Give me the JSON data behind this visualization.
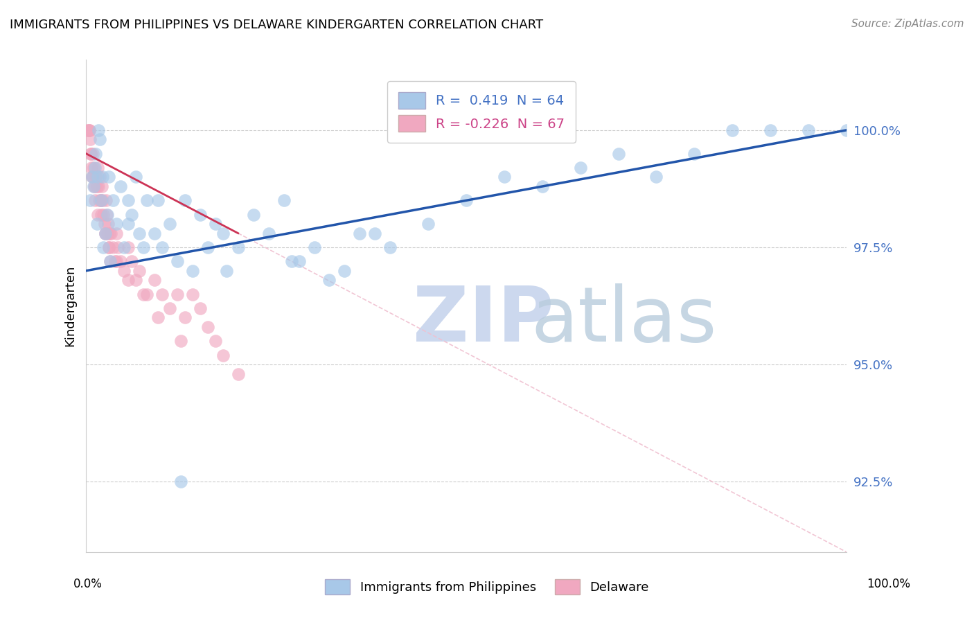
{
  "title": "IMMIGRANTS FROM PHILIPPINES VS DELAWARE KINDERGARTEN CORRELATION CHART",
  "source": "Source: ZipAtlas.com",
  "ylabel": "Kindergarten",
  "yticks": [
    92.5,
    95.0,
    97.5,
    100.0
  ],
  "ytick_labels": [
    "92.5%",
    "95.0%",
    "97.5%",
    "100.0%"
  ],
  "xlim": [
    0.0,
    100.0
  ],
  "ylim": [
    91.0,
    101.5
  ],
  "blue_color": "#a8c8e8",
  "pink_color": "#f0a8c0",
  "blue_line_color": "#2255aa",
  "pink_line_color": "#cc3355",
  "pink_dash_color": "#f0c0d0",
  "watermark_zip_color": "#ccd8ee",
  "watermark_atlas_color": "#b8ccdd",
  "legend_label_blue": "R =  0.419  N = 64",
  "legend_label_pink": "R = -0.226  N = 67",
  "legend_text_blue": "#4472c4",
  "legend_text_pink": "#cc4488",
  "blue_scatter_x": [
    0.5,
    0.8,
    1.0,
    1.2,
    1.3,
    1.5,
    1.6,
    1.8,
    2.0,
    2.2,
    2.5,
    2.8,
    3.0,
    3.5,
    4.0,
    4.5,
    5.0,
    5.5,
    6.0,
    6.5,
    7.0,
    8.0,
    9.0,
    10.0,
    11.0,
    12.0,
    13.0,
    14.0,
    15.0,
    16.0,
    17.0,
    18.0,
    20.0,
    22.0,
    24.0,
    26.0,
    28.0,
    30.0,
    32.0,
    34.0,
    36.0,
    40.0,
    45.0,
    50.0,
    55.0,
    60.0,
    65.0,
    70.0,
    75.0,
    80.0,
    85.0,
    90.0,
    95.0,
    100.0,
    1.4,
    2.3,
    3.2,
    5.5,
    7.5,
    9.5,
    12.5,
    18.5,
    27.0,
    38.0
  ],
  "blue_scatter_y": [
    98.5,
    99.0,
    98.8,
    99.2,
    99.5,
    99.0,
    100.0,
    99.8,
    98.5,
    99.0,
    97.8,
    98.2,
    99.0,
    98.5,
    98.0,
    98.8,
    97.5,
    98.5,
    98.2,
    99.0,
    97.8,
    98.5,
    97.8,
    97.5,
    98.0,
    97.2,
    98.5,
    97.0,
    98.2,
    97.5,
    98.0,
    97.8,
    97.5,
    98.2,
    97.8,
    98.5,
    97.2,
    97.5,
    96.8,
    97.0,
    97.8,
    97.5,
    98.0,
    98.5,
    99.0,
    98.8,
    99.2,
    99.5,
    99.0,
    99.5,
    100.0,
    100.0,
    100.0,
    100.0,
    98.0,
    97.5,
    97.2,
    98.0,
    97.5,
    98.5,
    92.5,
    97.0,
    97.2,
    97.8
  ],
  "pink_scatter_x": [
    0.2,
    0.3,
    0.4,
    0.5,
    0.6,
    0.7,
    0.8,
    0.9,
    1.0,
    1.1,
    1.2,
    1.3,
    1.4,
    1.5,
    1.6,
    1.7,
    1.8,
    1.9,
    2.0,
    2.1,
    2.2,
    2.3,
    2.4,
    2.5,
    2.6,
    2.7,
    2.8,
    2.9,
    3.0,
    3.1,
    3.2,
    3.3,
    3.5,
    3.8,
    4.0,
    4.2,
    4.5,
    5.0,
    5.5,
    6.0,
    6.5,
    7.0,
    8.0,
    9.0,
    10.0,
    11.0,
    12.0,
    13.0,
    14.0,
    15.0,
    16.0,
    17.0,
    18.0,
    20.0,
    0.4,
    0.6,
    0.9,
    1.2,
    1.5,
    2.0,
    2.5,
    3.0,
    4.0,
    5.5,
    7.5,
    9.5,
    12.5
  ],
  "pink_scatter_y": [
    100.0,
    100.0,
    100.0,
    99.8,
    99.5,
    99.2,
    99.0,
    99.5,
    99.2,
    98.8,
    98.5,
    99.0,
    98.8,
    99.2,
    98.8,
    98.5,
    99.0,
    98.5,
    98.2,
    98.8,
    98.5,
    98.2,
    98.0,
    97.8,
    98.5,
    98.2,
    97.8,
    98.0,
    97.5,
    97.8,
    97.2,
    97.8,
    97.5,
    97.2,
    97.8,
    97.5,
    97.2,
    97.0,
    97.5,
    97.2,
    96.8,
    97.0,
    96.5,
    96.8,
    96.5,
    96.2,
    96.5,
    96.0,
    96.5,
    96.2,
    95.8,
    95.5,
    95.2,
    94.8,
    100.0,
    99.5,
    99.0,
    98.8,
    98.2,
    98.5,
    97.8,
    97.5,
    97.2,
    96.8,
    96.5,
    96.0,
    95.5
  ],
  "blue_reg_x0": 0.0,
  "blue_reg_y0": 97.0,
  "blue_reg_x1": 100.0,
  "blue_reg_y1": 100.0,
  "pink_reg_x0": 0.0,
  "pink_reg_y0": 99.5,
  "pink_reg_x1": 100.0,
  "pink_reg_y1": 91.0
}
